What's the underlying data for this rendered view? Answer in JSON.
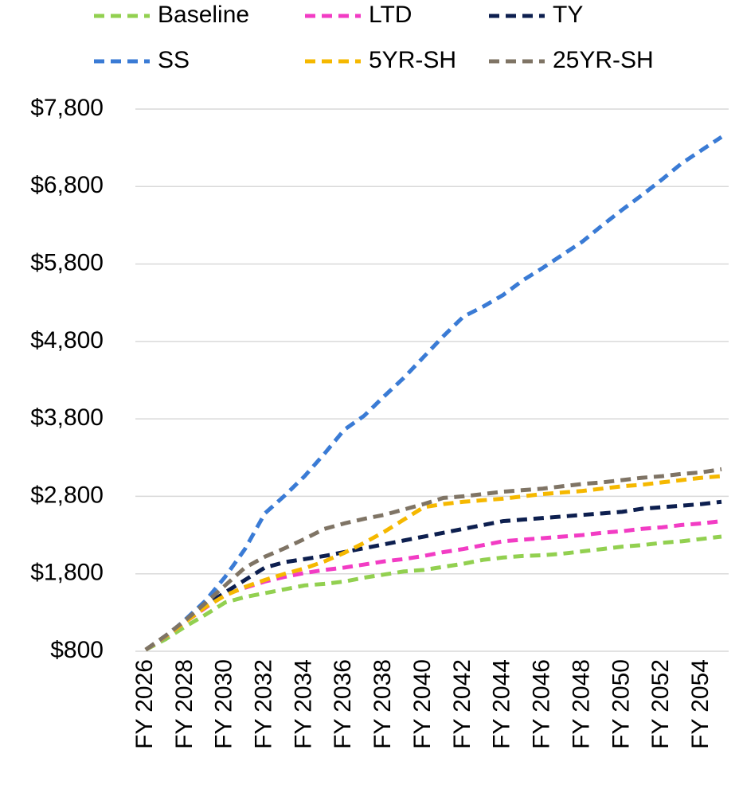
{
  "chart_data": {
    "type": "line",
    "categories": [
      "FY 2026",
      null,
      "FY 2028",
      null,
      "FY 2030",
      null,
      "FY 2032",
      null,
      "FY 2034",
      null,
      "FY 2036",
      null,
      "FY 2038",
      null,
      "FY 2040",
      null,
      "FY 2042",
      null,
      "FY 2044",
      null,
      "FY 2046",
      null,
      "FY 2048",
      null,
      "FY 2050",
      null,
      "FY 2052",
      null,
      "FY 2054",
      null
    ],
    "series": [
      {
        "name": "Baseline",
        "color": "#92d050",
        "values": [
          820,
          955,
          1120,
          1270,
          1430,
          1500,
          1550,
          1600,
          1650,
          1670,
          1700,
          1750,
          1790,
          1830,
          1850,
          1890,
          1930,
          1980,
          2010,
          2030,
          2040,
          2060,
          2090,
          2120,
          2150,
          2170,
          2200,
          2220,
          2250,
          2280
        ]
      },
      {
        "name": "LTD",
        "color": "#f23cc4",
        "values": [
          820,
          985,
          1180,
          1360,
          1530,
          1620,
          1700,
          1760,
          1810,
          1850,
          1880,
          1920,
          1960,
          1990,
          2030,
          2080,
          2120,
          2170,
          2220,
          2240,
          2260,
          2280,
          2300,
          2330,
          2350,
          2380,
          2400,
          2430,
          2450,
          2480
        ]
      },
      {
        "name": "TY",
        "color": "#0d1f4f",
        "values": [
          820,
          1000,
          1200,
          1390,
          1560,
          1720,
          1880,
          1950,
          1990,
          2030,
          2080,
          2130,
          2180,
          2230,
          2280,
          2330,
          2380,
          2430,
          2480,
          2500,
          2520,
          2540,
          2560,
          2580,
          2600,
          2640,
          2660,
          2680,
          2700,
          2730
        ]
      },
      {
        "name": "SS",
        "color": "#3a7bd5",
        "values": [
          820,
          985,
          1210,
          1450,
          1760,
          2120,
          2580,
          2810,
          3060,
          3350,
          3660,
          3840,
          4090,
          4330,
          4600,
          4870,
          5120,
          5250,
          5400,
          5590,
          5750,
          5920,
          6090,
          6300,
          6500,
          6690,
          6890,
          7100,
          7270,
          7440
        ]
      },
      {
        "name": "5YR-SH",
        "color": "#f5b800",
        "values": [
          820,
          990,
          1180,
          1370,
          1520,
          1630,
          1720,
          1800,
          1870,
          1960,
          2070,
          2200,
          2340,
          2500,
          2660,
          2700,
          2730,
          2750,
          2770,
          2800,
          2830,
          2850,
          2870,
          2900,
          2930,
          2950,
          2980,
          3010,
          3040,
          3060
        ]
      },
      {
        "name": "25YR-SH",
        "color": "#7f7465",
        "values": [
          820,
          1000,
          1200,
          1420,
          1650,
          1880,
          2020,
          2130,
          2250,
          2380,
          2450,
          2510,
          2560,
          2630,
          2700,
          2780,
          2800,
          2830,
          2860,
          2880,
          2900,
          2930,
          2960,
          2980,
          3010,
          3040,
          3060,
          3090,
          3110,
          3150
        ]
      }
    ],
    "ylim": [
      800,
      7800
    ],
    "yticks": [
      {
        "value": 800,
        "label": "$800"
      },
      {
        "value": 1800,
        "label": "$1,800"
      },
      {
        "value": 2800,
        "label": "$2,800"
      },
      {
        "value": 3800,
        "label": "$3,800"
      },
      {
        "value": 4800,
        "label": "$4,800"
      },
      {
        "value": 5800,
        "label": "$5,800"
      },
      {
        "value": 6800,
        "label": "$6,800"
      },
      {
        "value": 7800,
        "label": "$7,800"
      }
    ],
    "grid": true
  }
}
